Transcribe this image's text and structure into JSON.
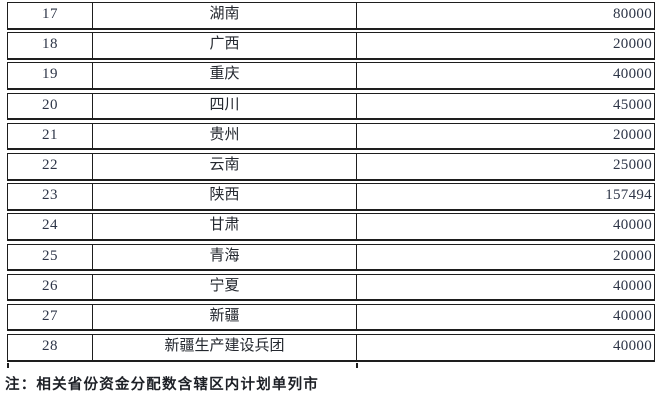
{
  "page": {
    "note": "注：相关省份资金分配数含辖区内计划单列市"
  },
  "table": {
    "rows": [
      {
        "index": "17",
        "region": "湖南",
        "amount": "80000"
      },
      {
        "index": "18",
        "region": "广西",
        "amount": "20000"
      },
      {
        "index": "19",
        "region": "重庆",
        "amount": "40000"
      },
      {
        "index": "20",
        "region": "四川",
        "amount": "45000"
      },
      {
        "index": "21",
        "region": "贵州",
        "amount": "20000"
      },
      {
        "index": "22",
        "region": "云南",
        "amount": "25000"
      },
      {
        "index": "23",
        "region": "陕西",
        "amount": "157494"
      },
      {
        "index": "24",
        "region": "甘肃",
        "amount": "40000"
      },
      {
        "index": "25",
        "region": "青海",
        "amount": "20000"
      },
      {
        "index": "26",
        "region": "宁夏",
        "amount": "40000"
      },
      {
        "index": "27",
        "region": "新疆",
        "amount": "40000"
      },
      {
        "index": "28",
        "region": "新疆生产建设兵团",
        "amount": "40000"
      }
    ]
  },
  "colors": {
    "border": "#1e1e1e",
    "text": "#24282f",
    "number_text": "#2d3547",
    "background": "#ffffff"
  }
}
